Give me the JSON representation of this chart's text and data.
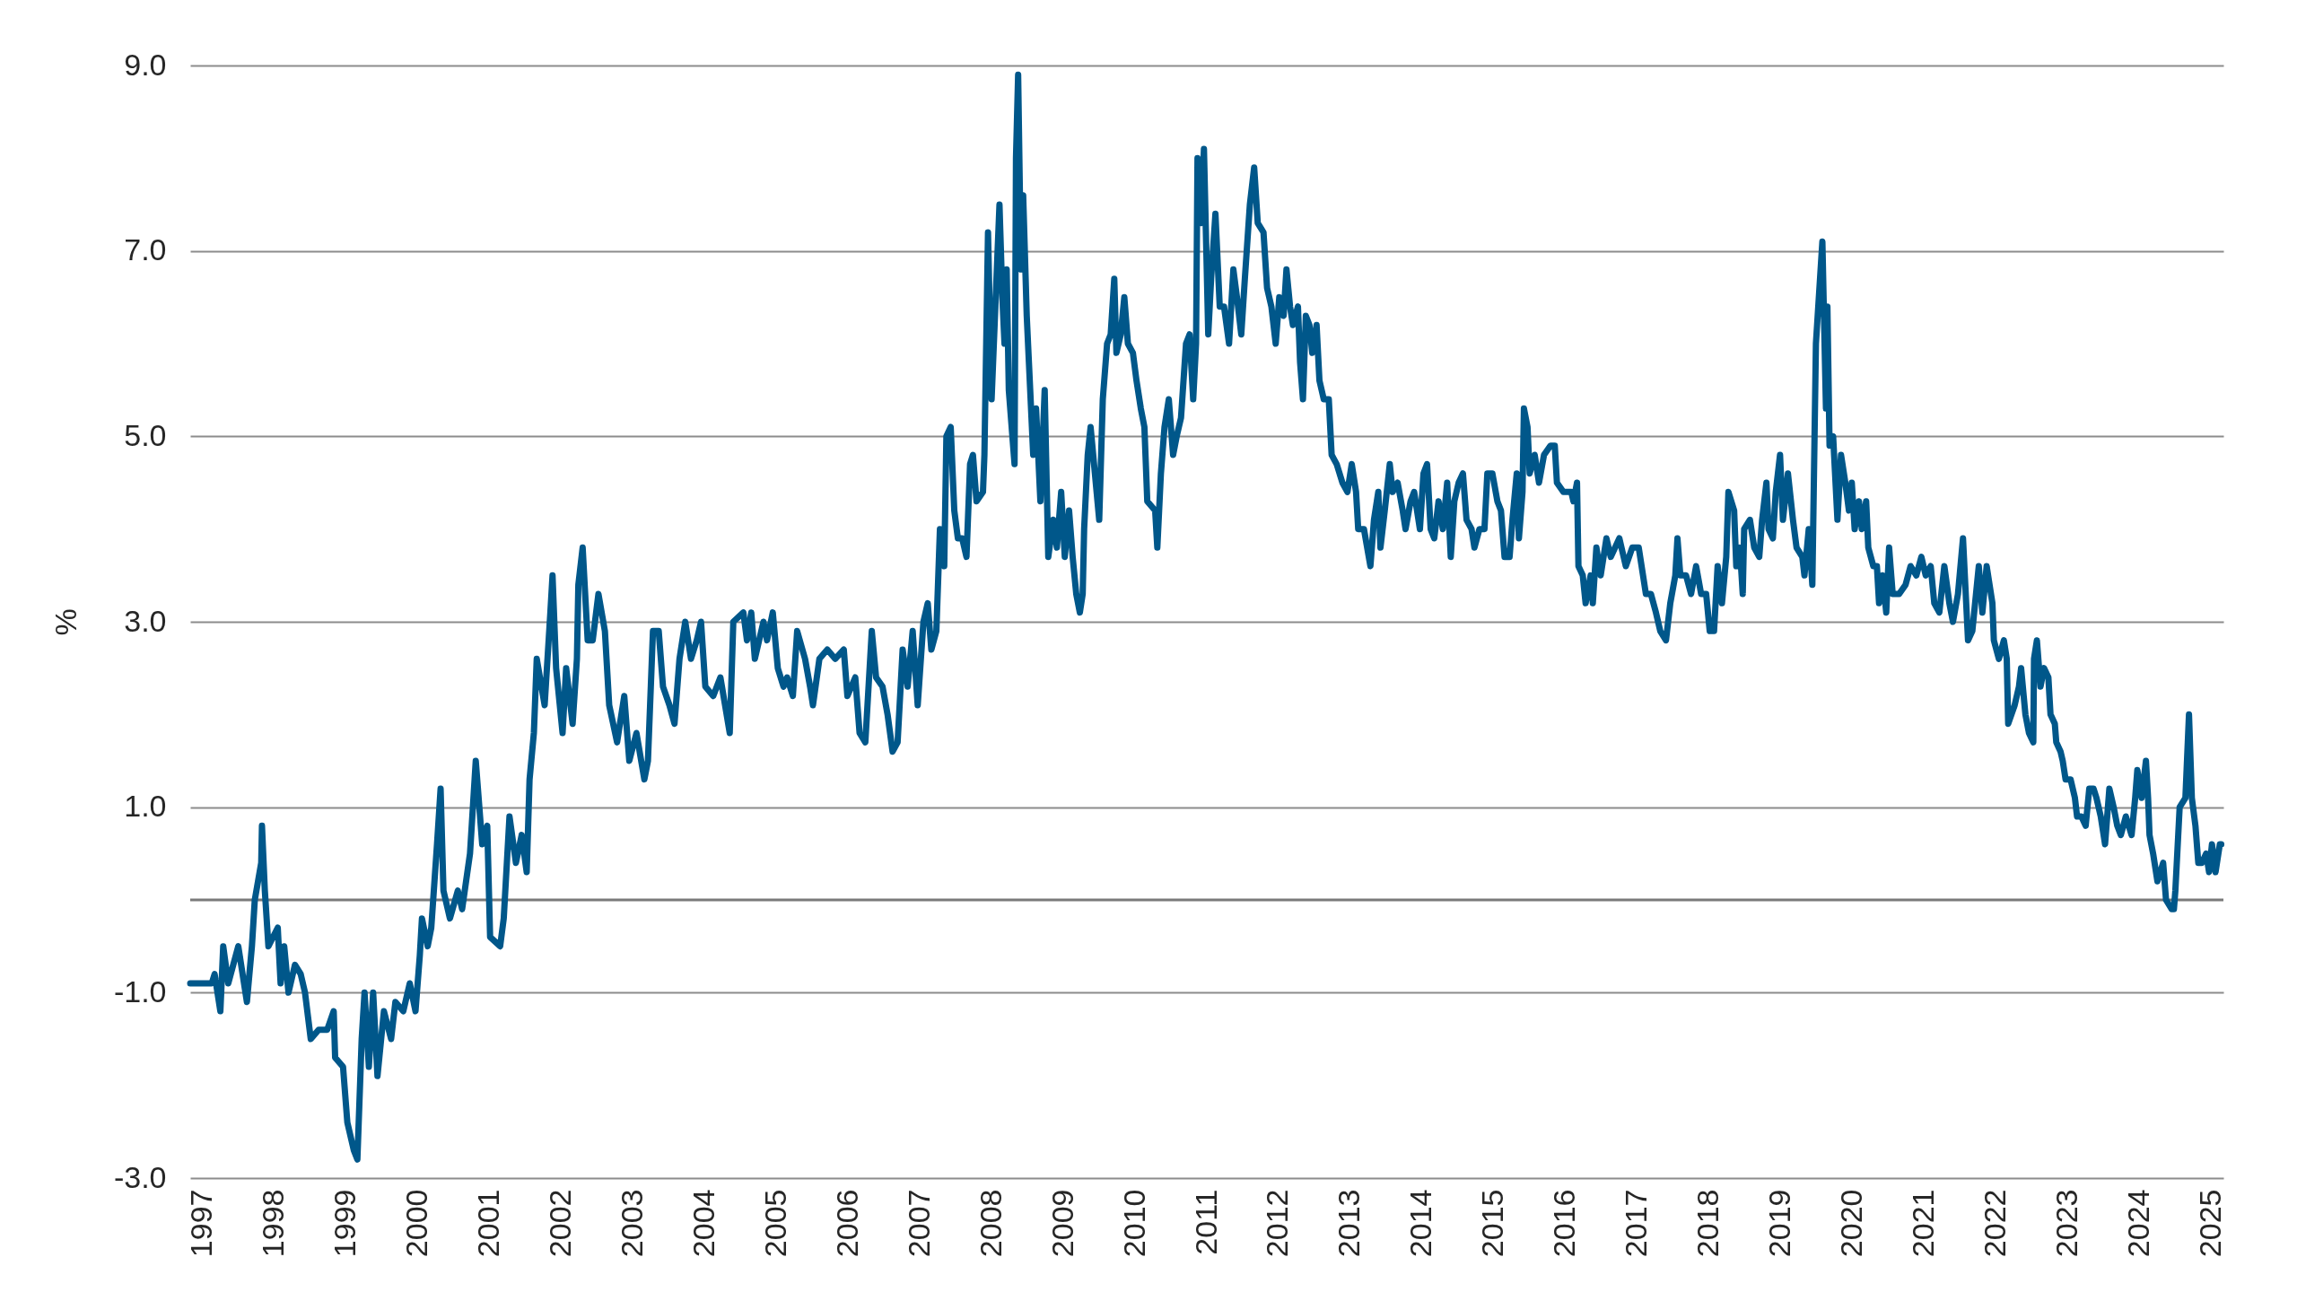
{
  "chart_data": {
    "type": "line",
    "ylabel": "%",
    "x": [
      1996.83,
      1997.13,
      1997.17,
      1997.25,
      1997.29,
      1997.36,
      1997.5,
      1997.62,
      1997.69,
      1997.73,
      1997.82,
      1997.83,
      1997.87,
      1997.92,
      1998.05,
      1998.09,
      1998.14,
      1998.2,
      1998.29,
      1998.37,
      1998.43,
      1998.51,
      1998.62,
      1998.74,
      1998.83,
      1998.85,
      1998.96,
      1999.02,
      1999.11,
      1999.16,
      1999.22,
      1999.26,
      1999.32,
      1999.38,
      1999.44,
      1999.53,
      1999.63,
      1999.69,
      1999.8,
      1999.89,
      1999.97,
      2000.03,
      2000.06,
      2000.14,
      2000.19,
      2000.27,
      2000.32,
      2000.36,
      2000.45,
      2000.56,
      2000.62,
      2000.73,
      2000.81,
      2000.9,
      2000.97,
      2001.01,
      2001.15,
      2001.2,
      2001.28,
      2001.37,
      2001.45,
      2001.52,
      2001.56,
      2001.62,
      2001.66,
      2001.77,
      2001.85,
      2001.88,
      2001.93,
      2002.02,
      2002.07,
      2002.16,
      2002.22,
      2002.24,
      2002.3,
      2002.37,
      2002.44,
      2002.52,
      2002.61,
      2002.67,
      2002.78,
      2002.88,
      2002.95,
      2003.05,
      2003.16,
      2003.21,
      2003.28,
      2003.36,
      2003.42,
      2003.51,
      2003.58,
      2003.65,
      2003.73,
      2003.81,
      2003.89,
      2003.95,
      2004.01,
      2004.12,
      2004.22,
      2004.35,
      2004.4,
      2004.54,
      2004.59,
      2004.65,
      2004.7,
      2004.82,
      2004.87,
      2004.95,
      2005.02,
      2005.1,
      2005.15,
      2005.23,
      2005.29,
      2005.4,
      2005.47,
      2005.51,
      2005.6,
      2005.71,
      2005.82,
      2005.94,
      2005.99,
      2006.1,
      2006.16,
      2006.24,
      2006.33,
      2006.39,
      2006.48,
      2006.55,
      2006.62,
      2006.69,
      2006.76,
      2006.83,
      2006.9,
      2006.97,
      2007.05,
      2007.11,
      2007.16,
      2007.23,
      2007.28,
      2007.34,
      2007.37,
      2007.43,
      2007.48,
      2007.53,
      2007.59,
      2007.65,
      2007.7,
      2007.74,
      2007.79,
      2007.88,
      2007.9,
      2007.95,
      2008.0,
      2008.11,
      2008.15,
      2008.18,
      2008.21,
      2008.24,
      2008.32,
      2008.34,
      2008.37,
      2008.41,
      2008.44,
      2008.49,
      2008.52,
      2008.58,
      2008.62,
      2008.68,
      2008.74,
      2008.79,
      2008.86,
      2008.91,
      2008.97,
      2009.02,
      2009.08,
      2009.13,
      2009.18,
      2009.23,
      2009.27,
      2009.29,
      2009.34,
      2009.38,
      2009.44,
      2009.5,
      2009.55,
      2009.61,
      2009.66,
      2009.71,
      2009.74,
      2009.8,
      2009.85,
      2009.9,
      2009.97,
      2010.02,
      2010.08,
      2010.13,
      2010.17,
      2010.28,
      2010.31,
      2010.36,
      2010.41,
      2010.47,
      2010.53,
      2010.58,
      2010.64,
      2010.71,
      2010.76,
      2010.81,
      2010.85,
      2010.87,
      2010.92,
      2010.96,
      2011.02,
      2011.06,
      2011.12,
      2011.18,
      2011.24,
      2011.31,
      2011.37,
      2011.42,
      2011.48,
      2011.53,
      2011.6,
      2011.66,
      2011.71,
      2011.79,
      2011.84,
      2011.9,
      2011.96,
      2012.01,
      2012.07,
      2012.11,
      2012.16,
      2012.2,
      2012.27,
      2012.3,
      2012.34,
      2012.38,
      2012.43,
      2012.47,
      2012.53,
      2012.57,
      2012.63,
      2012.7,
      2012.74,
      2012.81,
      2012.89,
      2012.96,
      2013.02,
      2013.08,
      2013.11,
      2013.19,
      2013.28,
      2013.33,
      2013.39,
      2013.42,
      2013.48,
      2013.55,
      2013.59,
      2013.66,
      2013.73,
      2013.77,
      2013.84,
      2013.89,
      2013.97,
      2014.02,
      2014.07,
      2014.12,
      2014.17,
      2014.23,
      2014.29,
      2014.35,
      2014.4,
      2014.45,
      2014.51,
      2014.57,
      2014.62,
      2014.69,
      2014.73,
      2014.8,
      2014.87,
      2014.91,
      2014.98,
      2015.05,
      2015.1,
      2015.15,
      2015.22,
      2015.26,
      2015.32,
      2015.35,
      2015.4,
      2015.42,
      2015.47,
      2015.5,
      2015.57,
      2015.63,
      2015.7,
      2015.79,
      2015.85,
      2015.88,
      2015.97,
      2016.08,
      2016.11,
      2016.16,
      2016.18,
      2016.24,
      2016.28,
      2016.35,
      2016.38,
      2016.43,
      2016.49,
      2016.57,
      2016.63,
      2016.75,
      2016.84,
      2016.93,
      2017.02,
      2017.08,
      2017.12,
      2017.19,
      2017.26,
      2017.32,
      2017.4,
      2017.46,
      2017.53,
      2017.56,
      2017.6,
      2017.68,
      2017.75,
      2017.82,
      2017.89,
      2017.96,
      2018.01,
      2018.07,
      2018.12,
      2018.18,
      2018.24,
      2018.27,
      2018.35,
      2018.38,
      2018.43,
      2018.47,
      2018.49,
      2018.57,
      2018.63,
      2018.7,
      2018.74,
      2018.8,
      2018.83,
      2018.89,
      2018.93,
      2018.99,
      2019.03,
      2019.1,
      2019.17,
      2019.22,
      2019.3,
      2019.33,
      2019.39,
      2019.44,
      2019.49,
      2019.58,
      2019.63,
      2019.65,
      2019.68,
      2019.73,
      2019.79,
      2019.84,
      2019.9,
      2019.95,
      2019.99,
      2020.03,
      2020.09,
      2020.13,
      2020.19,
      2020.22,
      2020.29,
      2020.34,
      2020.37,
      2020.42,
      2020.47,
      2020.51,
      2020.56,
      2020.65,
      2020.74,
      2020.81,
      2020.89,
      2020.96,
      2021.02,
      2021.09,
      2021.14,
      2021.21,
      2021.28,
      2021.35,
      2021.4,
      2021.47,
      2021.54,
      2021.61,
      2021.67,
      2021.76,
      2021.81,
      2021.87,
      2021.95,
      2021.97,
      2022.04,
      2022.11,
      2022.15,
      2022.17,
      2022.26,
      2022.32,
      2022.35,
      2022.41,
      2022.46,
      2022.52,
      2022.53,
      2022.57,
      2022.62,
      2022.67,
      2022.73,
      2022.76,
      2022.82,
      2022.84,
      2022.9,
      2022.93,
      2022.97,
      2023.04,
      2023.1,
      2023.13,
      2023.19,
      2023.25,
      2023.3,
      2023.36,
      2023.4,
      2023.46,
      2023.52,
      2023.58,
      2023.64,
      2023.69,
      2023.74,
      2023.81,
      2023.89,
      2023.94,
      2023.97,
      2024.03,
      2024.09,
      2024.12,
      2024.14,
      2024.19,
      2024.25,
      2024.33,
      2024.37,
      2024.45,
      2024.48,
      2024.5,
      2024.56,
      2024.64,
      2024.69,
      2024.73,
      2024.78,
      2024.82,
      2024.87,
      2024.93,
      2024.97,
      2025.01,
      2025.06,
      2025.12,
      2025.14
    ],
    "series": [
      {
        "color": "#00578a",
        "values": [
          -0.9,
          -0.9,
          -0.8,
          -1.2,
          -0.5,
          -0.9,
          -0.5,
          -1.1,
          -0.5,
          0.0,
          0.4,
          0.8,
          0.1,
          -0.5,
          -0.3,
          -0.9,
          -0.5,
          -1.0,
          -0.7,
          -0.8,
          -1.0,
          -1.5,
          -1.4,
          -1.4,
          -1.2,
          -1.7,
          -1.8,
          -2.4,
          -2.7,
          -2.8,
          -1.5,
          -1.0,
          -1.8,
          -1.0,
          -1.9,
          -1.2,
          -1.5,
          -1.1,
          -1.2,
          -0.9,
          -1.2,
          -0.6,
          -0.2,
          -0.5,
          -0.3,
          0.6,
          1.2,
          0.1,
          -0.2,
          0.1,
          -0.1,
          0.5,
          1.5,
          0.6,
          0.8,
          -0.4,
          -0.5,
          -0.2,
          0.9,
          0.4,
          0.7,
          0.3,
          1.3,
          1.8,
          2.6,
          2.1,
          3.1,
          3.5,
          2.5,
          1.8,
          2.5,
          1.9,
          2.6,
          3.4,
          3.8,
          2.8,
          2.8,
          3.3,
          2.9,
          2.1,
          1.7,
          2.2,
          1.5,
          1.8,
          1.3,
          1.5,
          2.9,
          2.9,
          2.3,
          2.1,
          1.9,
          2.6,
          3.0,
          2.6,
          2.8,
          3.0,
          2.3,
          2.2,
          2.4,
          1.8,
          3.0,
          3.1,
          2.8,
          3.1,
          2.6,
          3.0,
          2.8,
          3.1,
          2.5,
          2.3,
          2.4,
          2.2,
          2.9,
          2.6,
          2.3,
          2.1,
          2.6,
          2.7,
          2.6,
          2.7,
          2.2,
          2.4,
          1.8,
          1.7,
          2.9,
          2.4,
          2.3,
          2.0,
          1.6,
          1.7,
          2.7,
          2.3,
          2.9,
          2.1,
          3.0,
          3.2,
          2.7,
          2.9,
          4.0,
          3.6,
          5.0,
          5.1,
          4.2,
          3.9,
          3.9,
          3.7,
          4.7,
          4.8,
          4.3,
          4.4,
          4.8,
          7.2,
          5.4,
          7.5,
          6.5,
          6.0,
          6.8,
          5.5,
          4.7,
          8.0,
          8.9,
          6.8,
          7.6,
          6.3,
          5.8,
          4.8,
          5.3,
          4.3,
          5.5,
          3.7,
          4.1,
          3.8,
          4.4,
          3.7,
          4.2,
          3.7,
          3.3,
          3.1,
          3.3,
          4.0,
          4.8,
          5.1,
          4.6,
          4.1,
          5.4,
          6.0,
          6.1,
          6.7,
          5.9,
          6.1,
          6.5,
          6.0,
          5.9,
          5.6,
          5.3,
          5.1,
          4.3,
          4.2,
          3.8,
          4.6,
          5.1,
          5.4,
          4.8,
          5.0,
          5.2,
          6.0,
          6.1,
          5.4,
          6.0,
          8.0,
          7.3,
          8.1,
          6.1,
          6.7,
          7.4,
          6.4,
          6.4,
          6.0,
          6.8,
          6.5,
          6.1,
          6.7,
          7.5,
          7.9,
          7.3,
          7.2,
          6.6,
          6.4,
          6.0,
          6.5,
          6.3,
          6.8,
          6.4,
          6.2,
          6.4,
          5.8,
          5.4,
          6.3,
          6.2,
          5.9,
          6.2,
          5.6,
          5.4,
          5.4,
          4.8,
          4.7,
          4.5,
          4.4,
          4.7,
          4.4,
          4.0,
          4.0,
          3.6,
          4.1,
          4.4,
          3.8,
          4.2,
          4.7,
          4.4,
          4.5,
          4.2,
          4.0,
          4.3,
          4.4,
          4.0,
          4.6,
          4.7,
          4.0,
          3.9,
          4.3,
          4.0,
          4.5,
          3.7,
          4.3,
          4.5,
          4.6,
          4.1,
          4.0,
          3.8,
          4.0,
          4.0,
          4.6,
          4.6,
          4.3,
          4.2,
          3.7,
          3.7,
          4.1,
          4.6,
          3.9,
          4.4,
          5.3,
          5.1,
          4.6,
          4.8,
          4.5,
          4.8,
          4.9,
          4.9,
          4.5,
          4.4,
          4.4,
          4.3,
          4.5,
          3.6,
          3.5,
          3.2,
          3.5,
          3.2,
          3.8,
          3.5,
          3.9,
          3.7,
          3.9,
          3.6,
          3.8,
          3.8,
          3.5,
          3.3,
          3.3,
          3.1,
          2.9,
          2.8,
          3.2,
          3.5,
          3.9,
          3.5,
          3.5,
          3.3,
          3.6,
          3.3,
          3.3,
          2.9,
          2.9,
          3.6,
          3.2,
          3.7,
          4.4,
          4.2,
          3.6,
          3.8,
          3.3,
          4.0,
          4.1,
          3.8,
          3.7,
          4.1,
          4.5,
          4.0,
          3.9,
          4.4,
          4.8,
          4.1,
          4.6,
          4.1,
          3.8,
          3.7,
          3.5,
          4.0,
          3.4,
          6.0,
          7.1,
          5.3,
          6.4,
          4.9,
          5.0,
          4.1,
          4.8,
          4.5,
          4.2,
          4.5,
          4.0,
          4.3,
          4.0,
          4.3,
          3.8,
          3.6,
          3.6,
          3.2,
          3.5,
          3.1,
          3.8,
          3.3,
          3.3,
          3.4,
          3.6,
          3.5,
          3.7,
          3.5,
          3.6,
          3.2,
          3.1,
          3.6,
          3.2,
          3.0,
          3.3,
          3.9,
          2.8,
          2.9,
          3.6,
          3.1,
          3.6,
          3.2,
          2.8,
          2.6,
          2.8,
          2.6,
          1.9,
          2.1,
          2.3,
          2.5,
          2.0,
          1.8,
          1.7,
          2.6,
          2.8,
          2.3,
          2.5,
          2.4,
          2.0,
          1.9,
          1.7,
          1.6,
          1.5,
          1.3,
          1.3,
          1.1,
          0.9,
          0.9,
          0.8,
          1.2,
          1.2,
          1.1,
          0.9,
          0.6,
          1.2,
          1.0,
          0.8,
          0.7,
          0.9,
          0.7,
          1.1,
          1.4,
          1.1,
          1.5,
          1.1,
          0.7,
          0.5,
          0.2,
          0.4,
          0.0,
          -0.1,
          -0.1,
          0.1,
          1.0,
          1.1,
          2.0,
          1.1,
          0.8,
          0.4,
          0.4,
          0.5,
          0.3,
          0.6,
          0.3,
          0.6,
          0.6
        ]
      }
    ],
    "xlim": [
      1996.83,
      2025.17
    ],
    "xticks": [
      1997,
      1998,
      1999,
      2000,
      2001,
      2002,
      2003,
      2004,
      2005,
      2006,
      2007,
      2008,
      2009,
      2010,
      2011,
      2012,
      2013,
      2014,
      2015,
      2016,
      2017,
      2018,
      2019,
      2020,
      2021,
      2022,
      2023,
      2024,
      2025
    ],
    "ylim": [
      -3,
      9
    ],
    "yticks": [
      {
        "value": -3,
        "label": "-3.0"
      },
      {
        "value": -1,
        "label": "-1.0"
      },
      {
        "value": 1,
        "label": "1.0"
      },
      {
        "value": 3,
        "label": "3.0"
      },
      {
        "value": 5,
        "label": "5.0"
      },
      {
        "value": 7,
        "label": "7.0"
      },
      {
        "value": 9,
        "label": "9.0"
      }
    ],
    "grid": "y",
    "ref_lines": [
      {
        "axis": "y",
        "value": 0,
        "color": "#7a7a7a"
      }
    ]
  }
}
